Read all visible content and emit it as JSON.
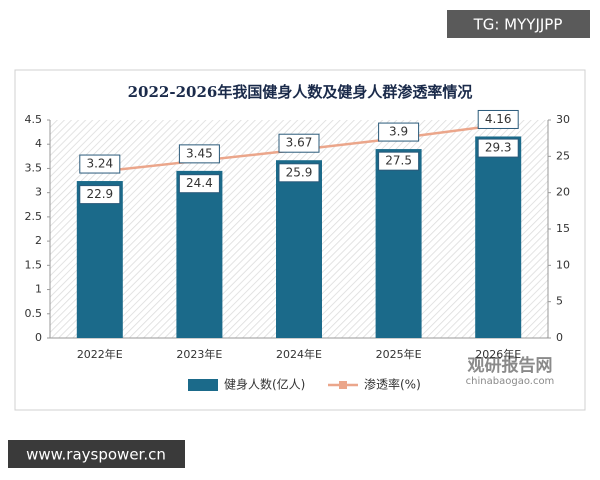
{
  "chart_data": {
    "type": "bar",
    "title": "2022-2026年我国健身人数及健身人群渗透率情况",
    "categories": [
      "2022年E",
      "2023年E",
      "2024年E",
      "2025年E",
      "2026年E"
    ],
    "series": [
      {
        "name": "健身人数(亿人)",
        "type": "bar",
        "color": "#1b6a8a",
        "values": [
          3.24,
          3.45,
          3.67,
          3.9,
          4.16
        ]
      },
      {
        "name": "渗透率(%)",
        "type": "line",
        "axis": "y2",
        "color": "#eba68b",
        "values": [
          22.9,
          24.4,
          25.9,
          27.5,
          29.3
        ]
      }
    ],
    "ylim": [
      0,
      4.5
    ],
    "yticks": [
      0,
      0.5,
      1,
      1.5,
      2,
      2.5,
      3,
      3.5,
      4,
      4.5
    ],
    "y2lim": [
      0,
      30
    ],
    "y2ticks": [
      0,
      5,
      10,
      15,
      20,
      25,
      30
    ],
    "grid": false,
    "legend": "bottom"
  },
  "watermarks": {
    "top": "TG: MYYJJPP",
    "bottom": "www.rayspower.cn",
    "brand": "观研报告网",
    "site": "chinabaogao.com"
  }
}
